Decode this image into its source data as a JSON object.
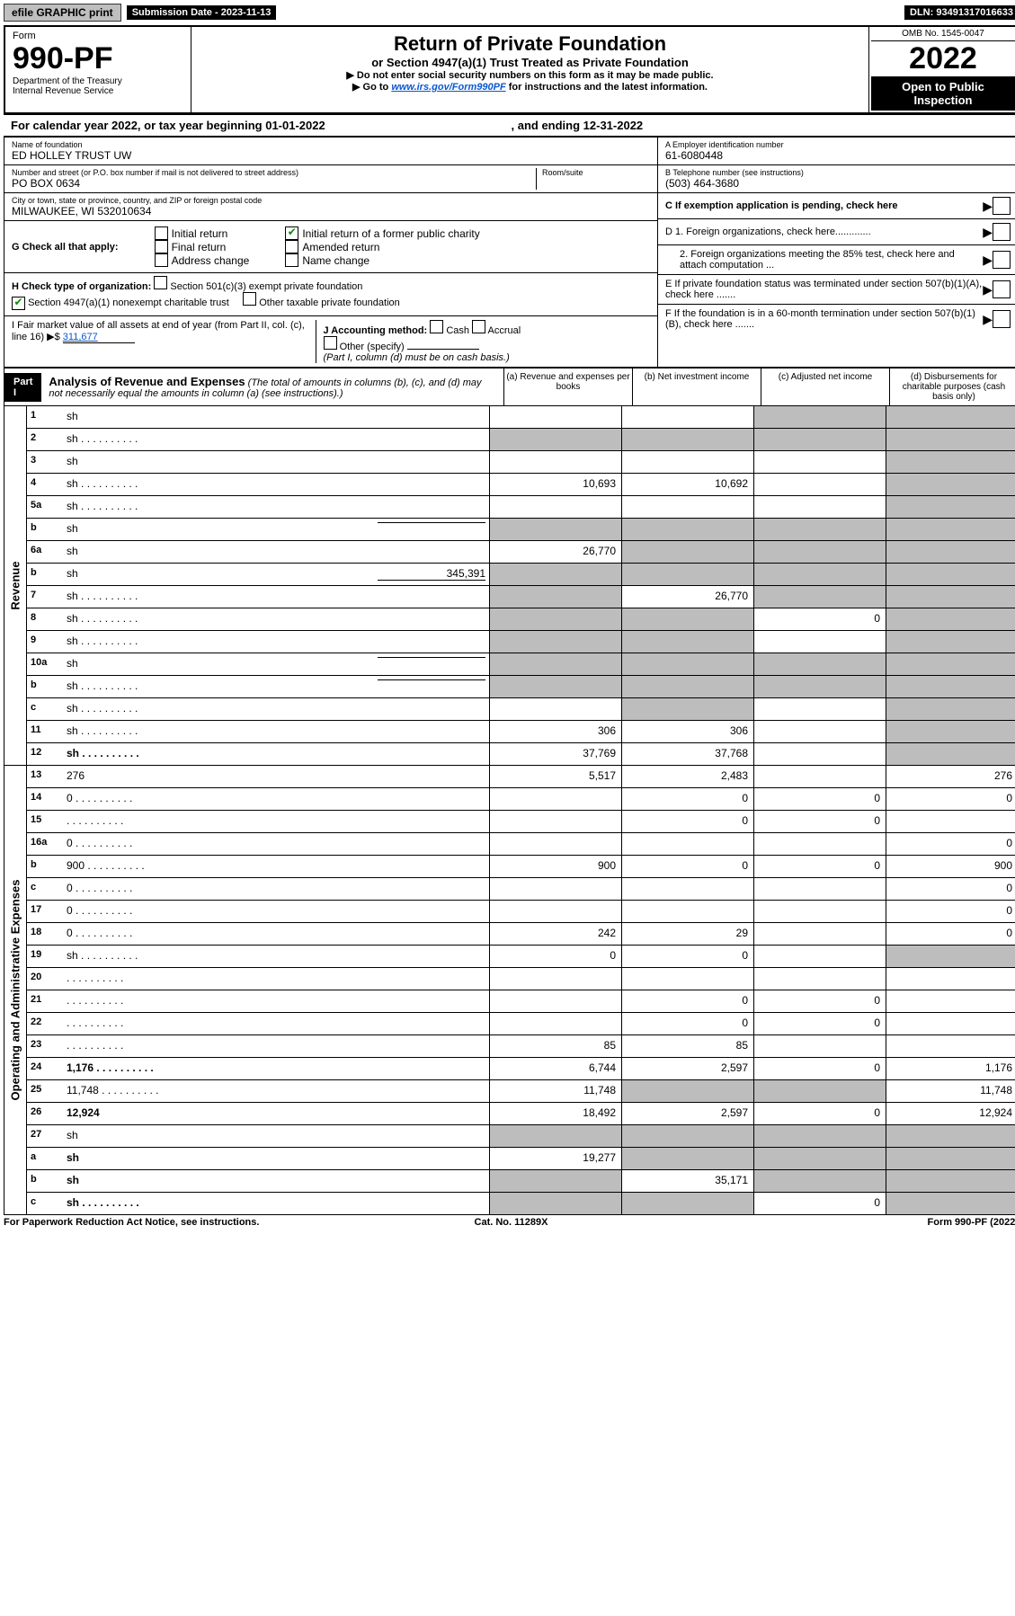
{
  "topbar": {
    "efile": "efile GRAPHIC print",
    "submission": "Submission Date - 2023-11-13",
    "dln": "DLN: 93491317016633"
  },
  "header": {
    "form_label": "Form",
    "form_number": "990-PF",
    "dept1": "Department of the Treasury",
    "dept2": "Internal Revenue Service",
    "title": "Return of Private Foundation",
    "subtitle": "or Section 4947(a)(1) Trust Treated as Private Foundation",
    "instr1": "▶ Do not enter social security numbers on this form as it may be made public.",
    "instr2_pre": "▶ Go to ",
    "instr2_link": "www.irs.gov/Form990PF",
    "instr2_post": " for instructions and the latest information.",
    "omb": "OMB No. 1545-0047",
    "year": "2022",
    "open": "Open to Public Inspection"
  },
  "calendar": {
    "left": "For calendar year 2022, or tax year beginning 01-01-2022",
    "right": ", and ending 12-31-2022"
  },
  "info": {
    "name_lbl": "Name of foundation",
    "name_val": "ED HOLLEY TRUST UW",
    "addr_lbl": "Number and street (or P.O. box number if mail is not delivered to street address)",
    "addr_val": "PO BOX 0634",
    "room_lbl": "Room/suite",
    "city_lbl": "City or town, state or province, country, and ZIP or foreign postal code",
    "city_val": "MILWAUKEE, WI  532010634",
    "ein_lbl": "A Employer identification number",
    "ein_val": "61-6080448",
    "phone_lbl": "B Telephone number (see instructions)",
    "phone_val": "(503) 464-3680",
    "c_text": "C If exemption application is pending, check here",
    "d1": "D 1. Foreign organizations, check here.............",
    "d2": "2. Foreign organizations meeting the 85% test, check here and attach computation ...",
    "e_text": "E  If private foundation status was terminated under section 507(b)(1)(A), check here .......",
    "f_text": "F  If the foundation is in a 60-month termination under section 507(b)(1)(B), check here .......",
    "g_label": "G Check all that apply:",
    "g_initial": "Initial return",
    "g_final": "Final return",
    "g_addr": "Address change",
    "g_initial_former": "Initial return of a former public charity",
    "g_amended": "Amended return",
    "g_name": "Name change",
    "h_label": "H Check type of organization:",
    "h_501c3": "Section 501(c)(3) exempt private foundation",
    "h_4947": "Section 4947(a)(1) nonexempt charitable trust",
    "h_other": "Other taxable private foundation",
    "i_label": "I Fair market value of all assets at end of year (from Part II, col. (c), line 16) ▶$",
    "i_val": "311,677",
    "j_label": "J Accounting method:",
    "j_cash": "Cash",
    "j_accrual": "Accrual",
    "j_other": "Other (specify)",
    "j_note": "(Part I, column (d) must be on cash basis.)"
  },
  "part1": {
    "label": "Part I",
    "title": "Analysis of Revenue and Expenses",
    "note": " (The total of amounts in columns (b), (c), and (d) may not necessarily equal the amounts in column (a) (see instructions).)",
    "col_a": "(a)   Revenue and expenses per books",
    "col_b": "(b)   Net investment income",
    "col_c": "(c)   Adjusted net income",
    "col_d": "(d)   Disbursements for charitable purposes (cash basis only)",
    "side_revenue": "Revenue",
    "side_expenses": "Operating and Administrative Expenses"
  },
  "revenue_rows": [
    {
      "n": "1",
      "d": "sh",
      "a": "",
      "b": "",
      "c": "sh"
    },
    {
      "n": "2",
      "d": "sh",
      "dots": true,
      "a": "sh",
      "b": "sh",
      "c": "sh"
    },
    {
      "n": "3",
      "d": "sh",
      "a": "",
      "b": "",
      "c": ""
    },
    {
      "n": "4",
      "d": "sh",
      "dots": true,
      "a": "10,693",
      "b": "10,692",
      "c": ""
    },
    {
      "n": "5a",
      "d": "sh",
      "dots": true,
      "a": "",
      "b": "",
      "c": ""
    },
    {
      "n": "b",
      "d": "sh",
      "field": true,
      "a": "sh",
      "b": "sh",
      "c": "sh"
    },
    {
      "n": "6a",
      "d": "sh",
      "a": "26,770",
      "b": "sh",
      "c": "sh"
    },
    {
      "n": "b",
      "d": "sh",
      "field": true,
      "fval": "345,391",
      "a": "sh",
      "b": "sh",
      "c": "sh"
    },
    {
      "n": "7",
      "d": "sh",
      "dots": true,
      "a": "sh",
      "b": "26,770",
      "c": "sh"
    },
    {
      "n": "8",
      "d": "sh",
      "dots": true,
      "a": "sh",
      "b": "sh",
      "c": "0"
    },
    {
      "n": "9",
      "d": "sh",
      "dots": true,
      "a": "sh",
      "b": "sh",
      "c": ""
    },
    {
      "n": "10a",
      "d": "sh",
      "field": true,
      "a": "sh",
      "b": "sh",
      "c": "sh"
    },
    {
      "n": "b",
      "d": "sh",
      "dots": true,
      "field": true,
      "a": "sh",
      "b": "sh",
      "c": "sh"
    },
    {
      "n": "c",
      "d": "sh",
      "dots": true,
      "a": "",
      "b": "sh",
      "c": ""
    },
    {
      "n": "11",
      "d": "sh",
      "dots": true,
      "a": "306",
      "b": "306",
      "c": ""
    },
    {
      "n": "12",
      "d": "sh",
      "dots": true,
      "bold": true,
      "a": "37,769",
      "b": "37,768",
      "c": ""
    }
  ],
  "expense_rows": [
    {
      "n": "13",
      "d": "276",
      "a": "5,517",
      "b": "2,483",
      "c": ""
    },
    {
      "n": "14",
      "d": "0",
      "dots": true,
      "a": "",
      "b": "0",
      "c": "0"
    },
    {
      "n": "15",
      "d": "",
      "dots": true,
      "a": "",
      "b": "0",
      "c": "0"
    },
    {
      "n": "16a",
      "d": "0",
      "dots": true,
      "a": "",
      "b": "",
      "c": ""
    },
    {
      "n": "b",
      "d": "900",
      "dots": true,
      "a": "900",
      "b": "0",
      "c": "0"
    },
    {
      "n": "c",
      "d": "0",
      "dots": true,
      "a": "",
      "b": "",
      "c": ""
    },
    {
      "n": "17",
      "d": "0",
      "dots": true,
      "a": "",
      "b": "",
      "c": ""
    },
    {
      "n": "18",
      "d": "0",
      "dots": true,
      "a": "242",
      "b": "29",
      "c": ""
    },
    {
      "n": "19",
      "d": "sh",
      "dots": true,
      "a": "0",
      "b": "0",
      "c": ""
    },
    {
      "n": "20",
      "d": "",
      "dots": true,
      "a": "",
      "b": "",
      "c": ""
    },
    {
      "n": "21",
      "d": "",
      "dots": true,
      "a": "",
      "b": "0",
      "c": "0"
    },
    {
      "n": "22",
      "d": "",
      "dots": true,
      "a": "",
      "b": "0",
      "c": "0"
    },
    {
      "n": "23",
      "d": "",
      "dots": true,
      "a": "85",
      "b": "85",
      "c": ""
    },
    {
      "n": "24",
      "d": "1,176",
      "dots": true,
      "bold": true,
      "a": "6,744",
      "b": "2,597",
      "c": "0"
    },
    {
      "n": "25",
      "d": "11,748",
      "dots": true,
      "a": "11,748",
      "b": "sh",
      "c": "sh"
    },
    {
      "n": "26",
      "d": "12,924",
      "bold": true,
      "a": "18,492",
      "b": "2,597",
      "c": "0"
    },
    {
      "n": "27",
      "d": "sh",
      "a": "sh",
      "b": "sh",
      "c": "sh"
    },
    {
      "n": "a",
      "d": "sh",
      "bold": true,
      "a": "19,277",
      "b": "sh",
      "c": "sh"
    },
    {
      "n": "b",
      "d": "sh",
      "bold": true,
      "a": "sh",
      "b": "35,171",
      "c": "sh"
    },
    {
      "n": "c",
      "d": "sh",
      "dots": true,
      "bold": true,
      "a": "sh",
      "b": "sh",
      "c": "0"
    }
  ],
  "footer": {
    "left": "For Paperwork Reduction Act Notice, see instructions.",
    "center": "Cat. No. 11289X",
    "right": "Form 990-PF (2022)"
  }
}
